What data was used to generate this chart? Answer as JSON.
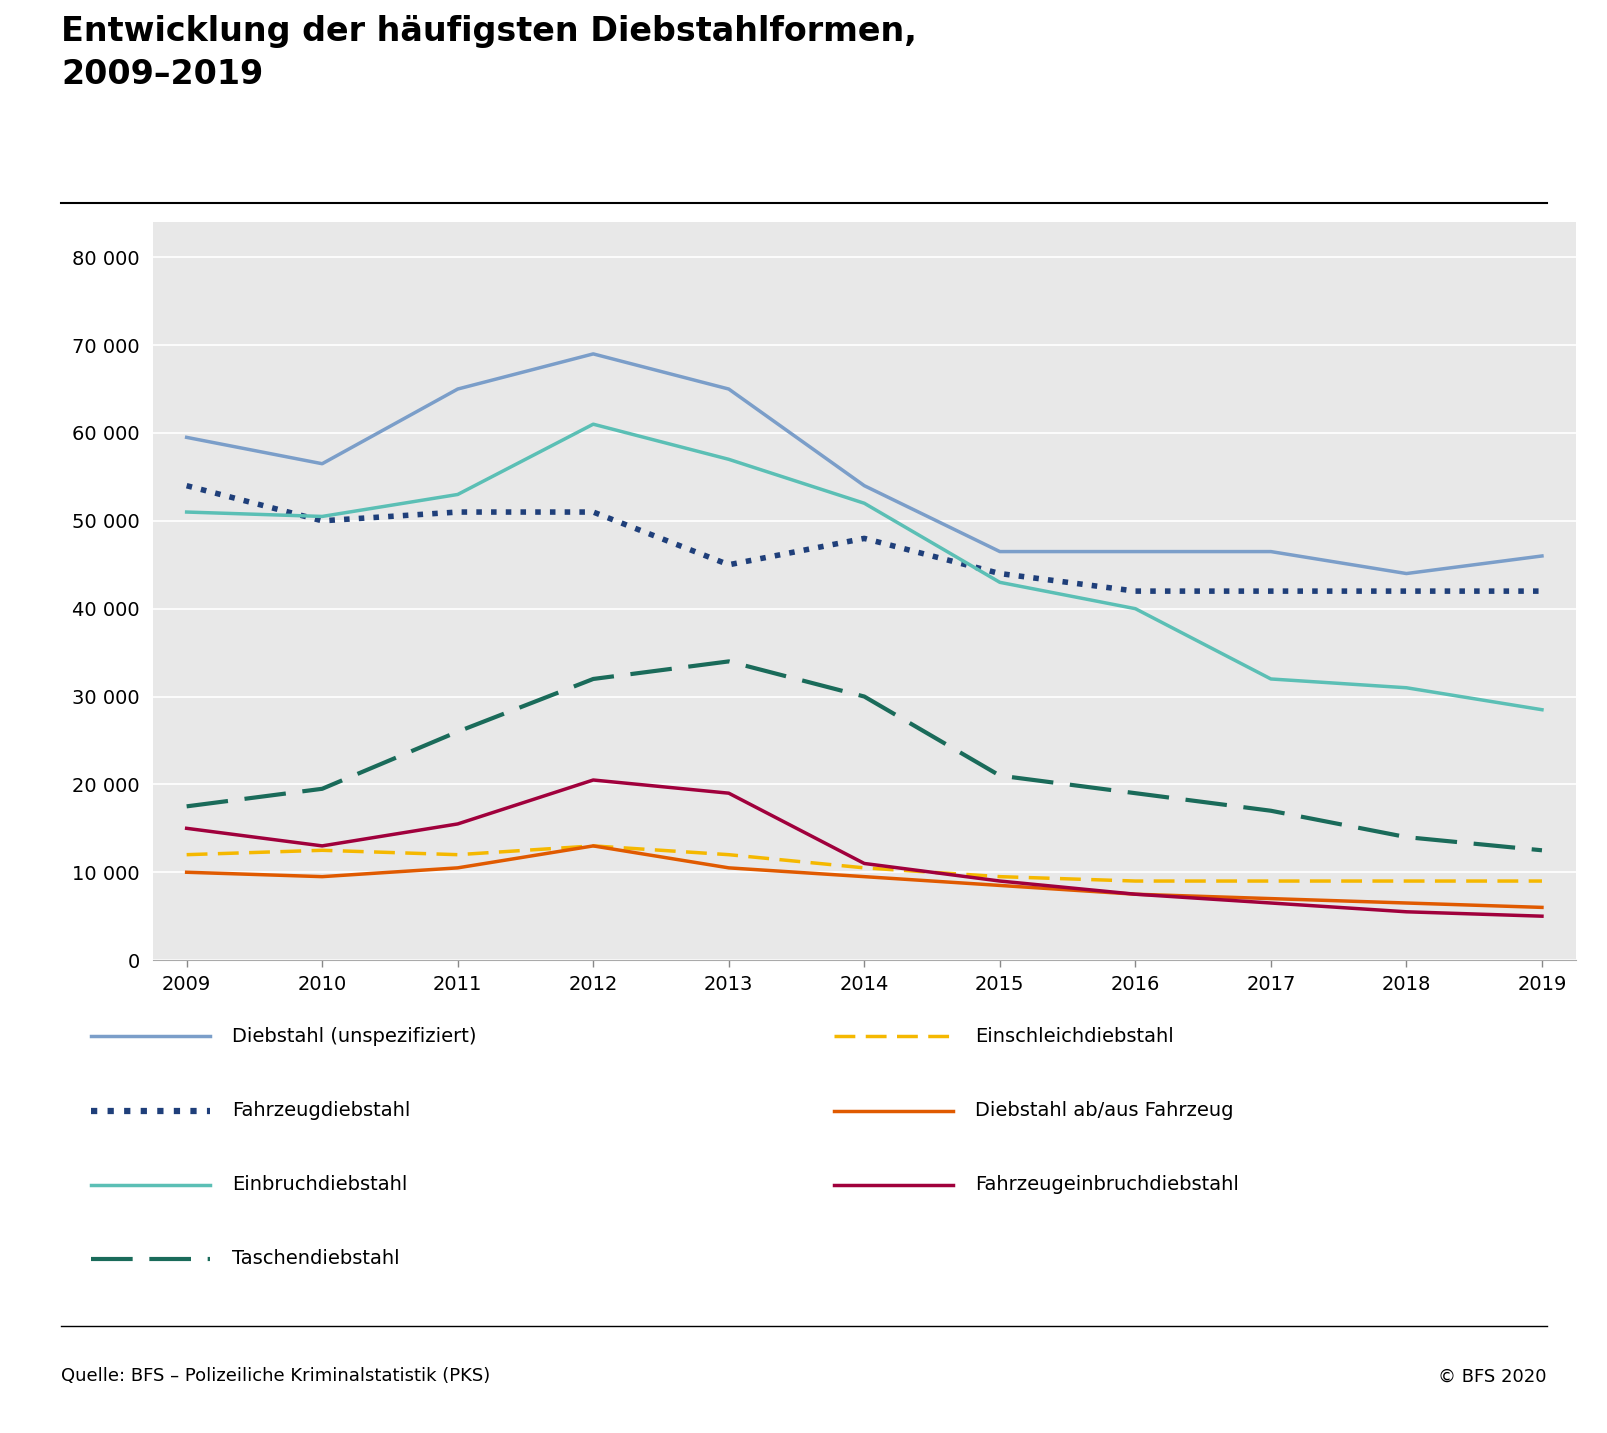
{
  "title_line1": "Entwicklung der häufigsten Diebstahlformen,",
  "title_line2": "2009–2019",
  "years": [
    2009,
    2010,
    2011,
    2012,
    2013,
    2014,
    2015,
    2016,
    2017,
    2018,
    2019
  ],
  "series": [
    {
      "name": "Diebstahl (unspezifiziert)",
      "values": [
        59500,
        56500,
        65000,
        69000,
        65000,
        54000,
        46500,
        46500,
        46500,
        44000,
        46000
      ],
      "color": "#7B9EC9",
      "linestyle": "solid",
      "linewidth": 2.5,
      "dashes": null
    },
    {
      "name": "Fahrzeugdiebstahl",
      "values": [
        54000,
        50000,
        51000,
        51000,
        45000,
        48000,
        44000,
        42000,
        42000,
        42000,
        42000
      ],
      "color": "#1F3F7A",
      "linestyle": "dotted",
      "linewidth": 4.0,
      "dashes": null
    },
    {
      "name": "Einbruchdiebstahl",
      "values": [
        51000,
        50500,
        53000,
        61000,
        57000,
        52000,
        43000,
        40000,
        32000,
        31000,
        28500
      ],
      "color": "#5BBFB5",
      "linestyle": "solid",
      "linewidth": 2.5,
      "dashes": null
    },
    {
      "name": "Taschendiebstahl",
      "values": [
        17500,
        19500,
        26000,
        32000,
        34000,
        30000,
        21000,
        19000,
        17000,
        14000,
        12500
      ],
      "color": "#1A6B5A",
      "linestyle": "dashed",
      "linewidth": 3.0,
      "dashes": [
        10,
        4
      ]
    },
    {
      "name": "Einschleichdiebstahl",
      "values": [
        12000,
        12500,
        12000,
        13000,
        12000,
        10500,
        9500,
        9000,
        9000,
        9000,
        9000
      ],
      "color": "#F5B800",
      "linestyle": "dashed",
      "linewidth": 2.5,
      "dashes": [
        6,
        3
      ]
    },
    {
      "name": "Diebstahl ab/aus Fahrzeug",
      "values": [
        10000,
        9500,
        10500,
        13000,
        10500,
        9500,
        8500,
        7500,
        7000,
        6500,
        6000
      ],
      "color": "#E05A00",
      "linestyle": "solid",
      "linewidth": 2.5,
      "dashes": null
    },
    {
      "name": "Fahrzeugeinbruchdiebstahl",
      "values": [
        15000,
        13000,
        15500,
        20500,
        19000,
        11000,
        9000,
        7500,
        6500,
        5500,
        5000
      ],
      "color": "#A0003C",
      "linestyle": "solid",
      "linewidth": 2.5,
      "dashes": null
    }
  ],
  "yticks": [
    0,
    10000,
    20000,
    30000,
    40000,
    50000,
    60000,
    70000,
    80000
  ],
  "ytick_labels": [
    "0",
    "10 000",
    "20 000",
    "30 000",
    "40 000",
    "50 000",
    "60 000",
    "70 000",
    "80 000"
  ],
  "ylim": [
    0,
    84000
  ],
  "xlim": [
    2009,
    2019
  ],
  "plot_bg": "#E8E8E8",
  "outer_bg": "#FFFFFF",
  "footer_left": "Quelle: BFS – Polizeiliche Kriminalstatistik (PKS)",
  "footer_right": "© BFS 2020",
  "title_fontsize": 24,
  "legend_fontsize": 14,
  "tick_fontsize": 14,
  "footer_fontsize": 13,
  "legend_left": [
    {
      "name": "Diebstahl (unspezifiziert)",
      "idx": 0
    },
    {
      "name": "Fahrzeugdiebstahl",
      "idx": 1
    },
    {
      "name": "Einbruchdiebstahl",
      "idx": 2
    },
    {
      "name": "Taschendiebstahl",
      "idx": 3
    }
  ],
  "legend_right": [
    {
      "name": "Einschleichdiebstahl",
      "idx": 4
    },
    {
      "name": "Diebstahl ab/aus Fahrzeug",
      "idx": 5
    },
    {
      "name": "Fahrzeugeinbruchdiebstahl",
      "idx": 6
    }
  ]
}
